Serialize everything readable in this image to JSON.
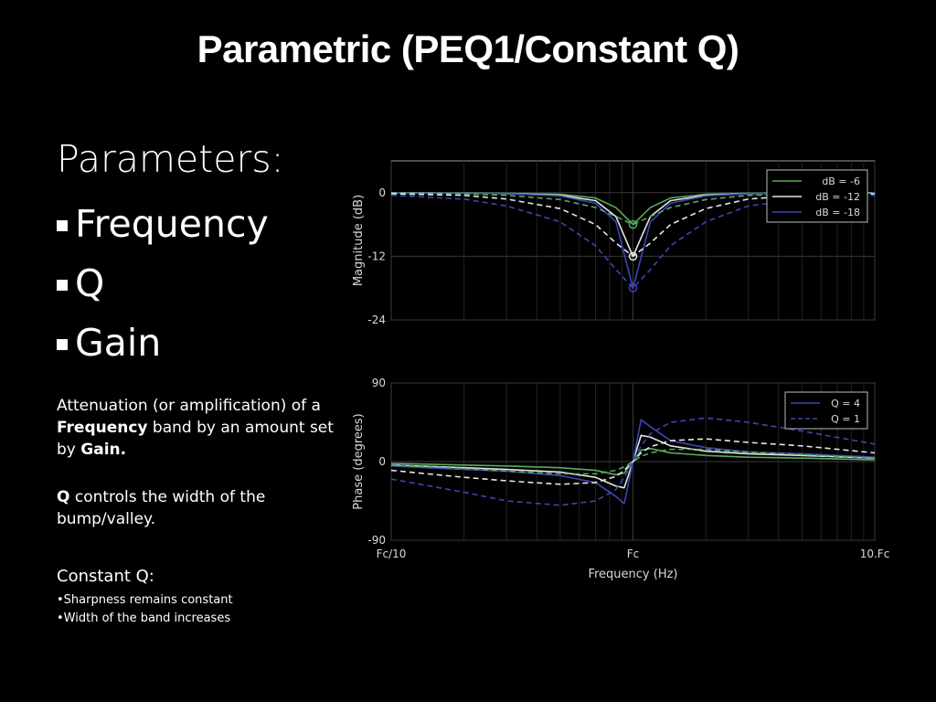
{
  "title": "Parametric (PEQ1/Constant Q)",
  "parameters": {
    "heading": "Parameters:",
    "items": [
      "Frequency",
      "Q",
      "Gain"
    ]
  },
  "description": {
    "p1": [
      {
        "t": "Attenuation (or amplification) of a ",
        "b": false
      },
      {
        "t": "Frequency",
        "b": true
      },
      {
        "t": " band by an amount set by ",
        "b": false
      },
      {
        "t": "Gain.",
        "b": true
      }
    ],
    "p2": [
      {
        "t": "Q",
        "b": true
      },
      {
        "t": " controls the width of the bump/valley.",
        "b": false
      }
    ]
  },
  "constant_q": {
    "heading": "Constant Q:",
    "items": [
      "•Sharpness remains constant",
      "•Width of the band increases"
    ]
  },
  "chart_data": [
    {
      "type": "line",
      "ylabel": "Magnitude (dB)",
      "xscale": "log",
      "ylim": [
        -24,
        6
      ],
      "yticks": [
        0,
        -12,
        -24
      ],
      "grid": true,
      "legend": "top-right",
      "legend_entries": [
        {
          "label": "dB = -6",
          "color": "#5aaa5a",
          "dash": false
        },
        {
          "label": "dB = -12",
          "color": "#e6e6e6",
          "dash": false
        },
        {
          "label": "dB = -18",
          "color": "#3c46b4",
          "dash": false
        }
      ],
      "x_relative_to_fc": [
        0.1,
        0.2,
        0.3,
        0.5,
        0.7,
        0.85,
        1.0,
        1.18,
        1.43,
        2,
        3,
        5,
        10
      ],
      "series": [
        {
          "color": "#5aaa5a",
          "q": 4,
          "values": [
            0,
            -0.05,
            -0.1,
            -0.3,
            -1.0,
            -2.8,
            -6,
            -2.8,
            -1.0,
            -0.3,
            -0.1,
            -0.05,
            0
          ]
        },
        {
          "color": "#e6e6e6",
          "q": 4,
          "values": [
            0,
            -0.1,
            -0.2,
            -0.5,
            -1.5,
            -4.5,
            -12,
            -4.5,
            -1.5,
            -0.5,
            -0.2,
            -0.1,
            0
          ]
        },
        {
          "color": "#3c46b4",
          "q": 4,
          "values": [
            0,
            -0.1,
            -0.2,
            -0.6,
            -2.0,
            -5.5,
            -18,
            -5.5,
            -2.0,
            -0.6,
            -0.2,
            -0.1,
            0
          ]
        },
        {
          "color": "#5aaa5a",
          "q": 1,
          "values": [
            0,
            -0.2,
            -0.5,
            -1.3,
            -2.8,
            -4.5,
            -6,
            -4.5,
            -2.8,
            -1.3,
            -0.5,
            -0.2,
            0
          ]
        },
        {
          "color": "#e6e6e6",
          "q": 1,
          "values": [
            -0.2,
            -0.5,
            -1.2,
            -3.0,
            -6.0,
            -9.5,
            -12,
            -9.5,
            -6.0,
            -3.0,
            -1.2,
            -0.5,
            -0.2
          ]
        },
        {
          "color": "#3c46b4",
          "q": 1,
          "values": [
            -0.5,
            -1.2,
            -2.5,
            -5.5,
            -10.0,
            -14.5,
            -18,
            -14.5,
            -10.0,
            -5.5,
            -2.5,
            -1.2,
            -0.5
          ]
        }
      ],
      "markers": [
        -6,
        -12,
        -18
      ]
    },
    {
      "type": "line",
      "xlabel": "Frequency (Hz)",
      "ylabel": "Phase (degrees)",
      "xscale": "log",
      "xtick_labels": [
        "Fc/10",
        "Fc",
        "10.Fc"
      ],
      "ylim": [
        -90,
        90
      ],
      "yticks": [
        90,
        0,
        -90
      ],
      "grid": true,
      "legend": "top-right",
      "legend_entries": [
        {
          "label": "Q = 4",
          "color": "#3c46b4",
          "dash": false
        },
        {
          "label": "Q = 1",
          "color": "#3c46b4",
          "dash": true
        }
      ],
      "x_relative_to_fc": [
        0.1,
        0.2,
        0.3,
        0.5,
        0.7,
        0.85,
        0.92,
        1.0,
        1.08,
        1.18,
        1.43,
        2,
        3,
        5,
        10
      ],
      "series": [
        {
          "color": "#5aaa5a",
          "q": 4,
          "values": [
            -2,
            -4,
            -5,
            -7,
            -10,
            -15,
            -13,
            0,
            13,
            15,
            10,
            7,
            5,
            4,
            2
          ]
        },
        {
          "color": "#e6e6e6",
          "q": 4,
          "values": [
            -4,
            -7,
            -9,
            -12,
            -18,
            -28,
            -30,
            0,
            30,
            28,
            18,
            12,
            9,
            7,
            4
          ]
        },
        {
          "color": "#3c46b4",
          "q": 4,
          "values": [
            -5,
            -9,
            -11,
            -16,
            -24,
            -40,
            -48,
            0,
            48,
            40,
            24,
            16,
            11,
            9,
            5
          ]
        },
        {
          "color": "#5aaa5a",
          "q": 1,
          "values": [
            -4,
            -8,
            -11,
            -14,
            -14,
            -10,
            -6,
            0,
            6,
            10,
            14,
            14,
            11,
            8,
            4
          ]
        },
        {
          "color": "#e6e6e6",
          "q": 1,
          "values": [
            -10,
            -18,
            -22,
            -26,
            -24,
            -17,
            -10,
            0,
            10,
            17,
            24,
            26,
            22,
            18,
            10
          ]
        },
        {
          "color": "#3c46b4",
          "q": 1,
          "values": [
            -20,
            -35,
            -45,
            -50,
            -45,
            -32,
            -18,
            0,
            18,
            32,
            45,
            50,
            45,
            35,
            20
          ]
        }
      ]
    }
  ]
}
